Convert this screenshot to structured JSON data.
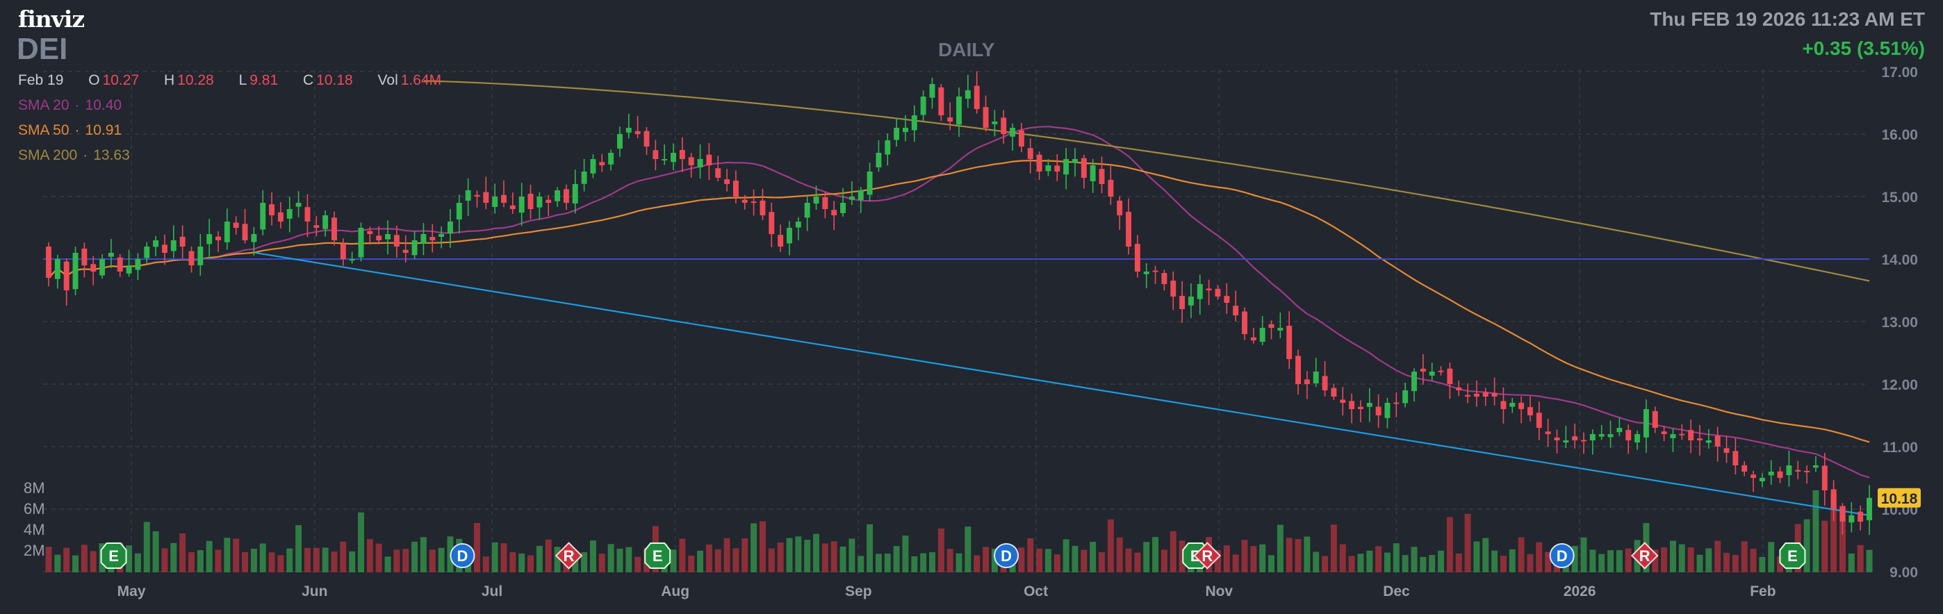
{
  "header": {
    "logo": "finviz",
    "ticker": "DEI",
    "timeframe": "DAILY",
    "datetime": "Thu FEB 19 2026 11:23 AM ET",
    "change": "+0.35 (3.51%)"
  },
  "ohlc": {
    "date": "Feb 19",
    "open_label": "O",
    "open": "10.27",
    "high_label": "H",
    "high": "10.28",
    "low_label": "L",
    "low": "9.81",
    "close_label": "C",
    "close": "10.18",
    "vol_label": "Vol",
    "vol": "1.64M"
  },
  "indicators": [
    {
      "label": "SMA 20",
      "value": "10.40",
      "color": "#a03a8a"
    },
    {
      "label": "SMA 50",
      "value": "10.91",
      "color": "#e58a33"
    },
    {
      "label": "SMA 200",
      "value": "13.63",
      "color": "#a08a3e"
    }
  ],
  "colors": {
    "up": "#2fb84f",
    "down": "#f04a57",
    "up_volume": "#2f7d44",
    "down_volume": "#8e2f38",
    "trendline": "#1d9be0",
    "horizontal_line": "#3a49c8",
    "grid": "#353a45",
    "background": "#22262f"
  },
  "chart_data": {
    "type": "candlestick",
    "symbol": "DEI",
    "timeframe": "daily",
    "date_range": [
      "2025-04-17",
      "2026-02-19"
    ],
    "ylim": [
      9.0,
      17.0
    ],
    "y_ticks": [
      "17.00",
      "16.00",
      "15.00",
      "14.00",
      "13.00",
      "12.00",
      "11.00",
      "10.00",
      "9.00"
    ],
    "x_ticks": [
      "May",
      "Jun",
      "Jul",
      "Aug",
      "Sep",
      "Oct",
      "Nov",
      "Dec",
      "2026",
      "Feb"
    ],
    "closes": [
      13.7,
      14.0,
      13.5,
      14.1,
      13.9,
      13.8,
      14.0,
      14.1,
      13.8,
      13.9,
      14.0,
      14.2,
      14.3,
      14.1,
      14.3,
      14.2,
      13.9,
      14.2,
      14.4,
      14.3,
      14.6,
      14.5,
      14.3,
      14.4,
      14.9,
      14.7,
      14.6,
      14.8,
      14.9,
      14.6,
      14.5,
      14.7,
      14.3,
      14.0,
      14.0,
      14.5,
      14.4,
      14.3,
      14.4,
      14.2,
      14.1,
      14.3,
      14.4,
      14.3,
      14.4,
      14.6,
      14.9,
      15.1,
      15.0,
      14.9,
      15.0,
      14.9,
      14.8,
      15.0,
      14.8,
      15.0,
      14.9,
      15.1,
      14.9,
      15.2,
      15.4,
      15.6,
      15.5,
      15.7,
      16.0,
      16.1,
      16.0,
      15.8,
      15.6,
      15.6,
      15.7,
      15.6,
      15.5,
      15.6,
      15.5,
      15.3,
      15.2,
      15.0,
      14.9,
      14.9,
      14.7,
      14.4,
      14.2,
      14.5,
      14.6,
      14.9,
      15.0,
      14.8,
      14.7,
      14.9,
      15.0,
      15.1,
      15.4,
      15.7,
      15.9,
      16.1,
      16.1,
      16.3,
      16.6,
      16.8,
      16.3,
      16.2,
      16.6,
      16.7,
      16.4,
      16.1,
      16.2,
      16.0,
      16.1,
      15.8,
      15.6,
      15.4,
      15.5,
      15.4,
      15.6,
      15.6,
      15.3,
      15.5,
      15.2,
      15.0,
      14.7,
      14.2,
      13.8,
      13.8,
      13.8,
      13.6,
      13.4,
      13.2,
      13.4,
      13.6,
      13.5,
      13.4,
      13.3,
      13.1,
      12.8,
      12.7,
      12.9,
      12.9,
      12.9,
      12.4,
      12.0,
      12.0,
      12.2,
      11.9,
      11.8,
      11.7,
      11.6,
      11.6,
      11.7,
      11.5,
      11.7,
      11.7,
      11.9,
      12.2,
      12.2,
      12.2,
      12.2,
      12.0,
      11.9,
      11.8,
      11.8,
      11.8,
      11.8,
      11.6,
      11.7,
      11.6,
      11.5,
      11.3,
      11.2,
      11.1,
      11.1,
      11.1,
      11.1,
      11.2,
      11.2,
      11.2,
      11.3,
      11.1,
      11.2,
      11.6,
      11.3,
      11.2,
      11.2,
      11.2,
      11.1,
      11.1,
      11.1,
      11.0,
      10.9,
      10.7,
      10.6,
      10.5,
      10.5,
      10.6,
      10.5,
      10.7,
      10.6,
      10.6,
      10.7,
      10.3,
      10.0,
      9.8,
      9.9,
      9.8,
      10.18
    ],
    "volume_ticks": [
      "8M",
      "6M",
      "4M",
      "2M"
    ],
    "sma": [
      {
        "name": "SMA 20",
        "last": 10.4
      },
      {
        "name": "SMA 50",
        "last": 10.91
      },
      {
        "name": "SMA 200",
        "last": 13.63
      }
    ],
    "horizontal_line": 14.0,
    "trendline": {
      "from": [
        "2025-05-22",
        14.1
      ],
      "to": [
        "2026-02-19",
        9.9
      ]
    },
    "last_price_tag": "10.18",
    "events": [
      {
        "letter": "E",
        "date": "2025-04-28"
      },
      {
        "letter": "D",
        "date": "2025-06-26"
      },
      {
        "letter": "R",
        "date": "2025-07-14"
      },
      {
        "letter": "E",
        "date": "2025-07-29"
      },
      {
        "letter": "D",
        "date": "2025-09-26"
      },
      {
        "letter": "E",
        "date": "2025-10-28"
      },
      {
        "letter": "R",
        "date": "2025-10-30"
      },
      {
        "letter": "D",
        "date": "2025-12-29"
      },
      {
        "letter": "R",
        "date": "2026-01-12"
      },
      {
        "letter": "E",
        "date": "2026-02-06"
      }
    ]
  }
}
